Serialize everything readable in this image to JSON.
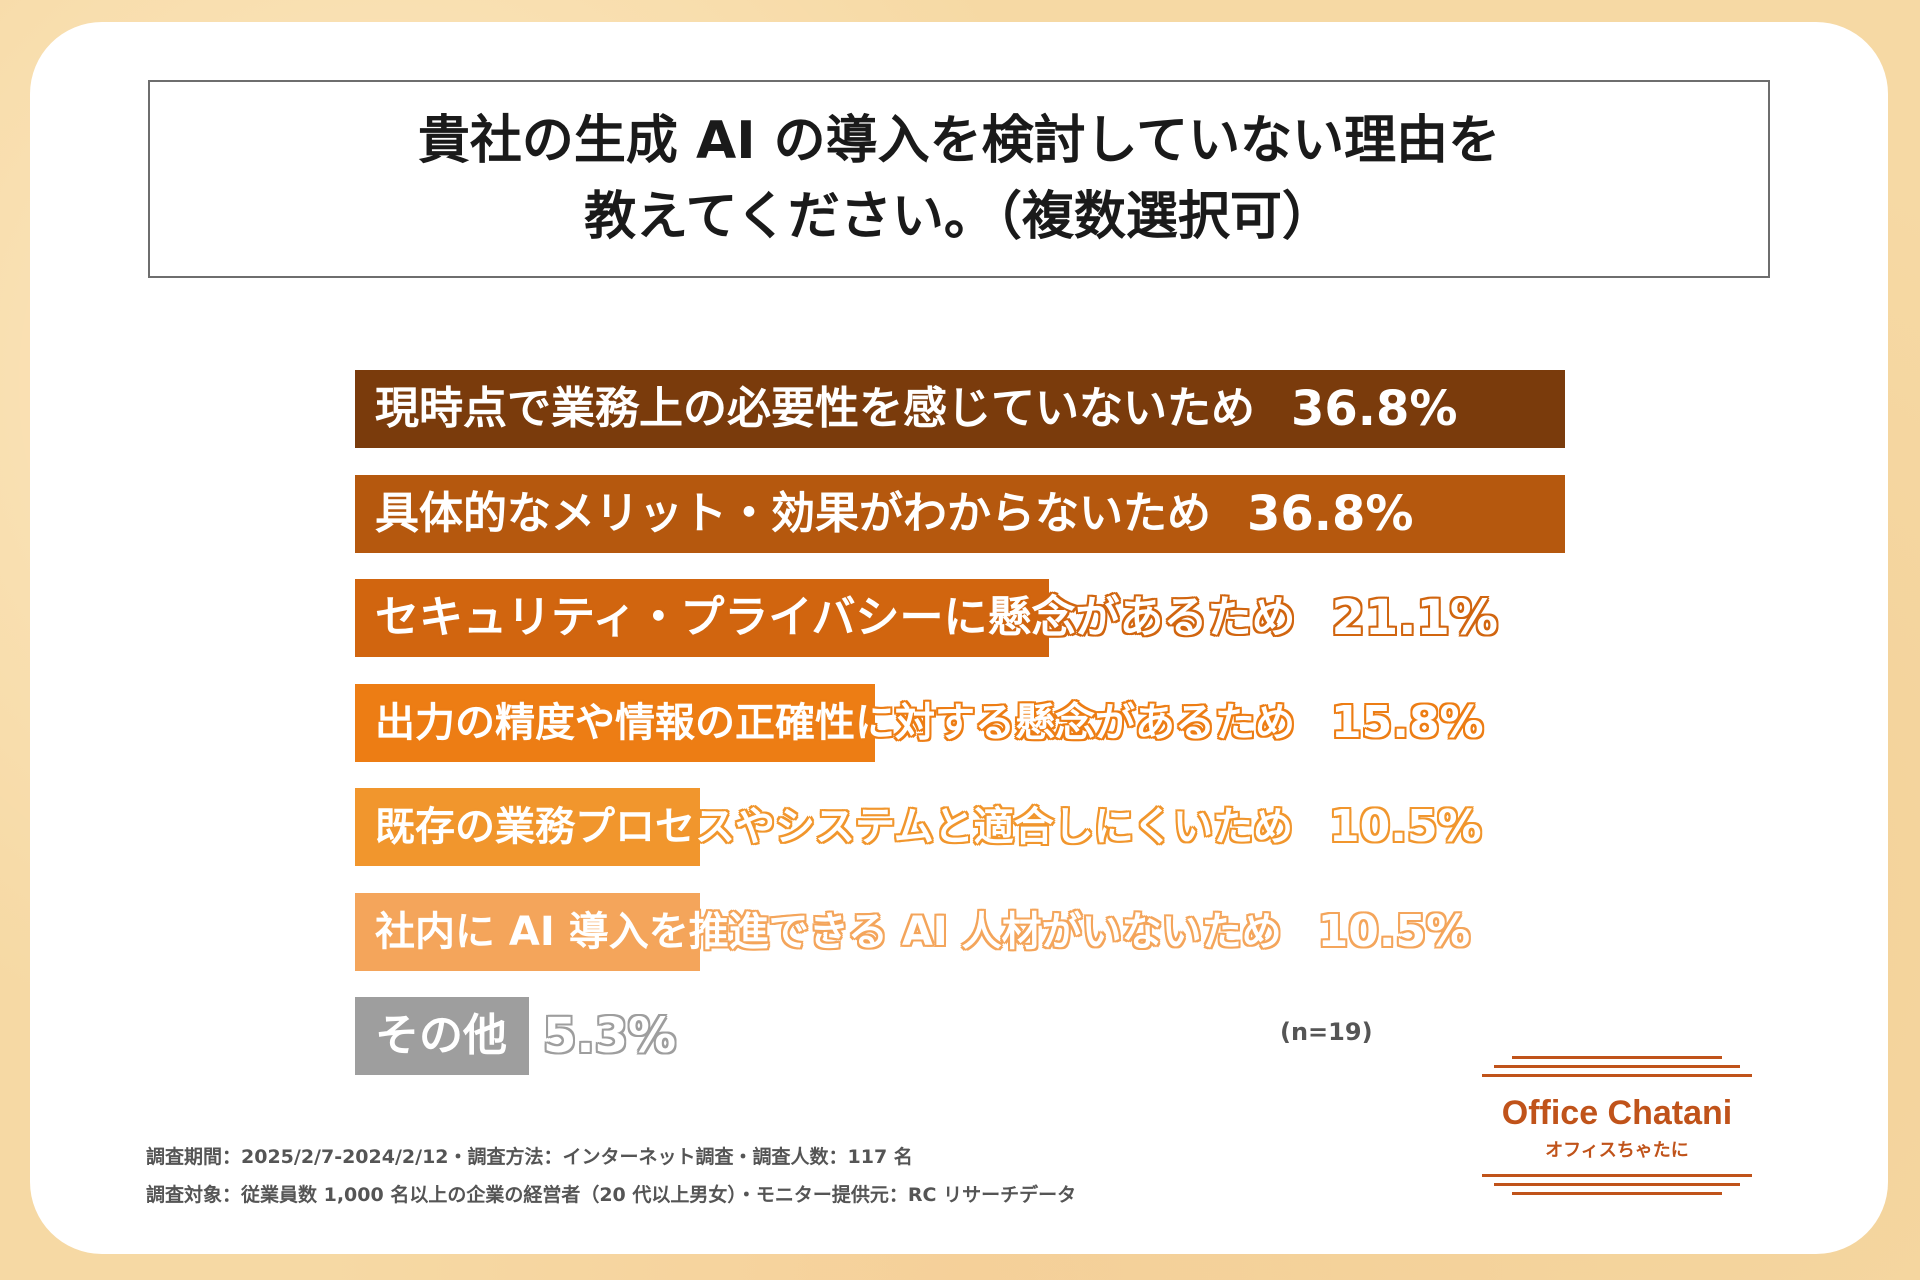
{
  "title": {
    "line1": "貴社の生成 AI の導入を検討していない理由を",
    "line2": "教えてください。（複数選択可）"
  },
  "chart_data": {
    "type": "bar",
    "orientation": "horizontal",
    "categories": [
      "現時点で業務上の必要性を感じていないため",
      "具体的なメリット・効果がわからないため",
      "セキュリティ・プライバシーに懸念があるため",
      "出力の精度や情報の正確性に対する懸念があるため",
      "既存の業務プロセスやシステムと適合しにくいため",
      "社内に AI 導入を推進できる AI 人材がいないため",
      "その他"
    ],
    "values": [
      36.8,
      36.8,
      21.1,
      15.8,
      10.5,
      10.5,
      5.3
    ],
    "value_labels": [
      "36.8%",
      "36.8%",
      "21.1%",
      "15.8%",
      "10.5%",
      "10.5%",
      "5.3%"
    ],
    "colors": [
      "#7a3b0c",
      "#b5580e",
      "#d1650f",
      "#ed7d14",
      "#f1962d",
      "#f4a55b",
      "#9e9e9e"
    ],
    "xlim": [
      0,
      36.8
    ],
    "n_label": "(n=19)"
  },
  "footnotes": {
    "line1": "調査期間：2025/2/7-2024/2/12・調査方法：インターネット調査・調査人数：117 名",
    "line2": "調査対象：従業員数 1,000 名以上の企業の経営者（20 代以上男女）・モニター提供元：RC リサーチデータ"
  },
  "logo": {
    "name": "Office Chatani",
    "sub": "オフィスちゃたに"
  }
}
